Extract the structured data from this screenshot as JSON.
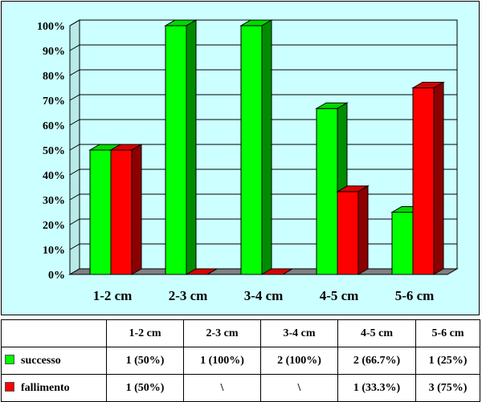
{
  "chart_data": {
    "type": "bar",
    "categories": [
      "1-2 cm",
      "2-3 cm",
      "3-4 cm",
      "4-5 cm",
      "5-6 cm"
    ],
    "series": [
      {
        "name": "successo",
        "values": [
          50,
          100,
          100,
          66.7,
          25
        ],
        "color": "#00ff00"
      },
      {
        "name": "fallimento",
        "values": [
          50,
          0,
          0,
          33.3,
          75
        ],
        "color": "#ff0000"
      }
    ],
    "ylim": [
      0,
      100
    ],
    "yticks": [
      "0%",
      "10%",
      "20%",
      "30%",
      "40%",
      "50%",
      "60%",
      "70%",
      "80%",
      "90%",
      "100%"
    ],
    "grid": true,
    "style": "3d"
  },
  "table": {
    "rows": [
      {
        "label": "successo",
        "color": "#00ff00",
        "cells": [
          "1 (50%)",
          "1 (100%)",
          "2 (100%)",
          "2 (66.7%)",
          "1 (25%)"
        ]
      },
      {
        "label": "fallimento",
        "color": "#ff0000",
        "cells": [
          "1 (50%)",
          "\\",
          "\\",
          "1 (33.3%)",
          "3 (75%)"
        ]
      }
    ]
  }
}
